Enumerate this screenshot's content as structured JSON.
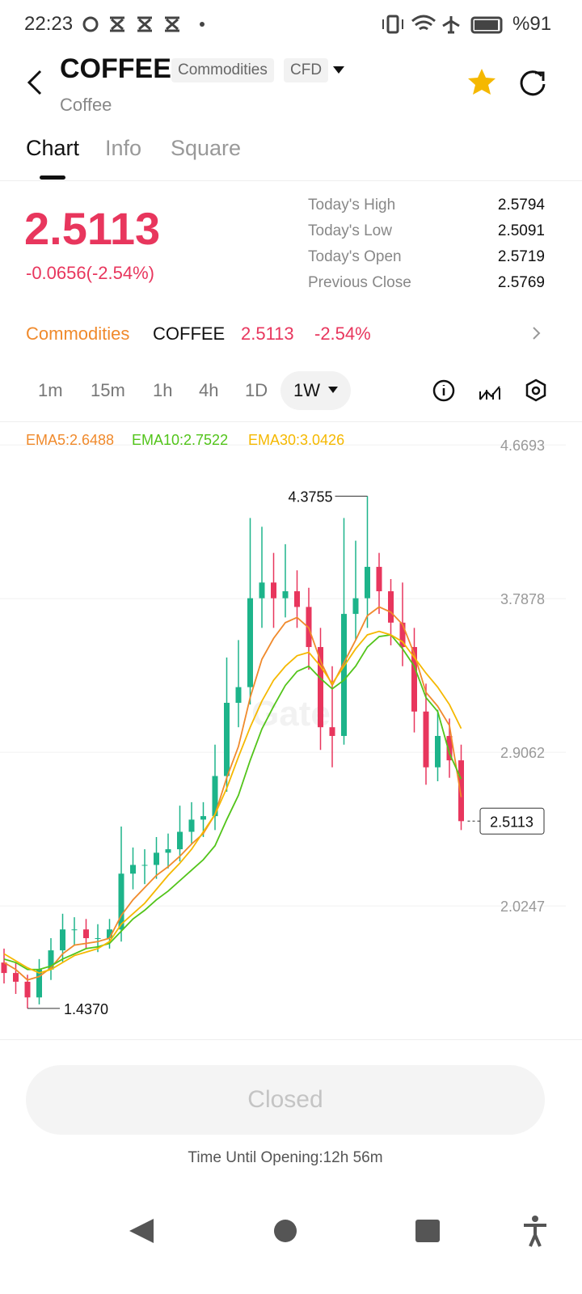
{
  "status_bar": {
    "time": "22:23",
    "battery": "%91"
  },
  "header": {
    "symbol": "COFFEE",
    "tags": [
      "Commodities",
      "CFD"
    ],
    "subtitle": "Coffee"
  },
  "tabs": [
    "Chart",
    "Info",
    "Square"
  ],
  "quote": {
    "price": "2.5113",
    "change": "-0.0656(-2.54%)",
    "stats": [
      {
        "label": "Today's High",
        "value": "2.5794"
      },
      {
        "label": "Today's Low",
        "value": "2.5091"
      },
      {
        "label": "Today's Open",
        "value": "2.5719"
      },
      {
        "label": "Previous Close",
        "value": "2.5769"
      }
    ]
  },
  "ticker_row": {
    "category": "Commodities",
    "symbol": "COFFEE",
    "price": "2.5113",
    "change": "-2.54%"
  },
  "intervals": [
    "1m",
    "15m",
    "1h",
    "4h",
    "1D",
    "1W"
  ],
  "chart_data": {
    "type": "candlestick",
    "watermark": "Gate",
    "up_color": "#1db48a",
    "down_color": "#e8365d",
    "open": [
      1.7,
      1.64,
      1.59,
      1.5,
      1.66,
      1.77,
      1.89,
      1.89,
      1.84,
      1.84,
      1.89,
      2.21,
      2.26,
      2.26,
      2.33,
      2.35,
      2.45,
      2.52,
      2.54,
      2.77,
      3.19,
      3.28,
      3.79,
      3.88,
      3.79,
      3.83,
      3.74,
      3.51,
      3.05,
      3.0,
      3.7,
      3.79,
      3.97,
      3.83,
      3.65,
      3.51,
      3.14,
      2.82,
      3.0,
      2.86
    ],
    "high": [
      1.78,
      1.7,
      1.63,
      1.72,
      1.84,
      1.98,
      1.96,
      1.95,
      1.92,
      1.95,
      2.48,
      2.36,
      2.35,
      2.42,
      2.44,
      2.6,
      2.62,
      2.62,
      2.95,
      3.45,
      3.55,
      4.25,
      4.2,
      4.05,
      4.1,
      3.95,
      3.85,
      3.62,
      3.4,
      4.25,
      4.12,
      4.3755,
      4.05,
      3.9,
      3.88,
      3.62,
      3.3,
      3.15,
      3.1,
      2.95
    ],
    "low": [
      1.58,
      1.52,
      1.437,
      1.46,
      1.6,
      1.7,
      1.8,
      1.78,
      1.76,
      1.78,
      1.82,
      2.12,
      2.15,
      2.18,
      2.24,
      2.28,
      2.38,
      2.42,
      2.46,
      2.68,
      3.05,
      3.18,
      3.62,
      3.62,
      3.68,
      3.62,
      3.38,
      2.92,
      2.82,
      2.95,
      3.55,
      3.62,
      3.7,
      3.52,
      3.4,
      3.02,
      2.72,
      2.74,
      2.76,
      2.46
    ],
    "close": [
      1.64,
      1.59,
      1.5,
      1.66,
      1.77,
      1.89,
      1.89,
      1.84,
      1.84,
      1.89,
      2.21,
      2.26,
      2.26,
      2.33,
      2.35,
      2.45,
      2.52,
      2.54,
      2.77,
      3.19,
      3.28,
      3.79,
      3.88,
      3.79,
      3.83,
      3.74,
      3.51,
      3.05,
      3.0,
      3.7,
      3.79,
      3.97,
      3.83,
      3.65,
      3.51,
      3.14,
      2.82,
      3.0,
      2.86,
      2.5113
    ],
    "series": [
      {
        "name": "EMA5:2.6488",
        "color": "#f08a2c",
        "values": [
          1.7,
          1.66,
          1.6,
          1.62,
          1.67,
          1.75,
          1.8,
          1.81,
          1.82,
          1.84,
          1.97,
          2.06,
          2.13,
          2.2,
          2.25,
          2.31,
          2.38,
          2.44,
          2.55,
          2.76,
          2.94,
          3.22,
          3.44,
          3.56,
          3.65,
          3.68,
          3.62,
          3.43,
          3.29,
          3.42,
          3.55,
          3.69,
          3.74,
          3.71,
          3.64,
          3.47,
          3.25,
          3.17,
          3.06,
          2.6488
        ]
      },
      {
        "name": "EMA10:2.7522",
        "color": "#52c41a",
        "values": [
          1.72,
          1.7,
          1.66,
          1.66,
          1.68,
          1.72,
          1.75,
          1.78,
          1.79,
          1.81,
          1.88,
          1.95,
          2.0,
          2.06,
          2.11,
          2.17,
          2.23,
          2.29,
          2.37,
          2.52,
          2.66,
          2.86,
          3.04,
          3.17,
          3.29,
          3.37,
          3.4,
          3.33,
          3.27,
          3.32,
          3.4,
          3.51,
          3.57,
          3.58,
          3.5,
          3.4,
          3.22,
          3.14,
          2.9,
          2.7522
        ]
      },
      {
        "name": "EMA30:3.0426",
        "color": "#f5b800",
        "values": [
          1.75,
          1.71,
          1.67,
          1.64,
          1.66,
          1.7,
          1.74,
          1.76,
          1.78,
          1.82,
          1.92,
          1.98,
          2.04,
          2.12,
          2.2,
          2.27,
          2.35,
          2.45,
          2.55,
          2.7,
          2.88,
          3.05,
          3.2,
          3.32,
          3.4,
          3.46,
          3.48,
          3.4,
          3.3,
          3.4,
          3.5,
          3.58,
          3.6,
          3.58,
          3.54,
          3.45,
          3.36,
          3.28,
          3.18,
          3.0426
        ]
      }
    ],
    "ylim": [
      1.26,
      4.8
    ],
    "yticks": [
      4.6693,
      3.7878,
      2.9062,
      2.0247
    ],
    "grid": true,
    "annotations": [
      {
        "value": 4.3755,
        "label": "4.3755"
      },
      {
        "value": 1.437,
        "label": "1.4370"
      }
    ],
    "last_price": {
      "value": 2.5113,
      "label": "2.5113"
    }
  },
  "footer": {
    "button": "Closed",
    "note": "Time Until Opening:12h 56m"
  }
}
